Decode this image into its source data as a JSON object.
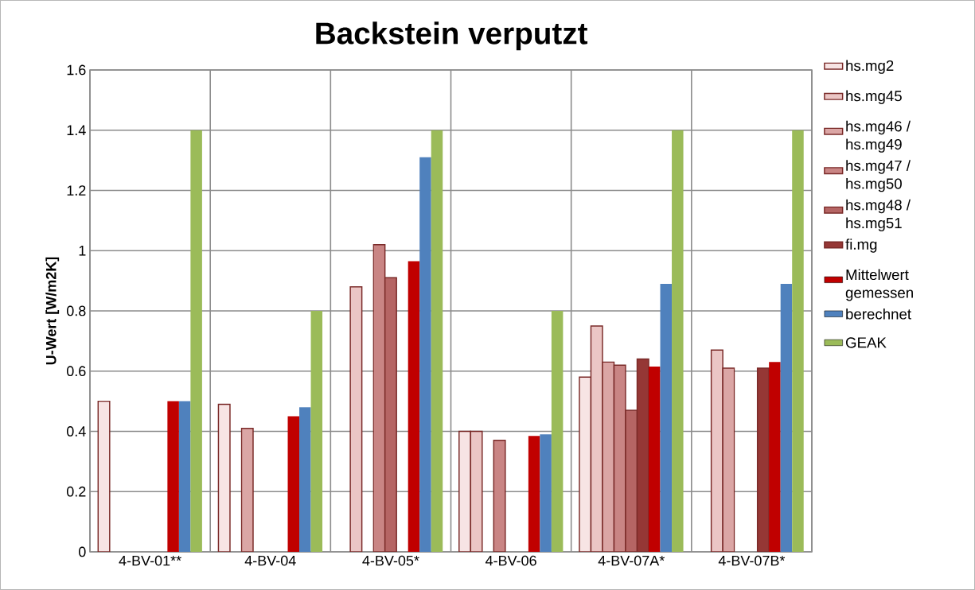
{
  "chart_data": {
    "type": "bar",
    "title": "Backstein verputzt",
    "ylabel": "U-Wert [W/m2K]",
    "categories": [
      "4-BV-01**",
      "4-BV-04",
      "4-BV-05*",
      "4-BV-06",
      "4-BV-07A*",
      "4-BV-07B*"
    ],
    "series": [
      {
        "name": "hs.mg2",
        "color": "#f7e4e4",
        "values": [
          0.5,
          0.49,
          null,
          0.4,
          0.58,
          null
        ]
      },
      {
        "name": "hs.mg45",
        "color": "#ebc6c5",
        "values": [
          null,
          null,
          0.88,
          0.4,
          0.75,
          0.67
        ]
      },
      {
        "name": "hs.mg46 / hs.mg49",
        "color": "#dba6a5",
        "values": [
          null,
          0.41,
          null,
          null,
          0.63,
          0.61
        ]
      },
      {
        "name": "hs.mg47 / hs.mg50",
        "color": "#c98584",
        "values": [
          null,
          null,
          1.02,
          0.37,
          0.62,
          null
        ]
      },
      {
        "name": "hs.mg48 / hs.mg51",
        "color": "#b56564",
        "values": [
          null,
          null,
          0.91,
          null,
          0.47,
          null
        ]
      },
      {
        "name": "fi.mg",
        "color": "#953735",
        "values": [
          null,
          null,
          null,
          null,
          0.64,
          0.61
        ]
      },
      {
        "name": "Mittelwert gemessen",
        "color": "#c00000",
        "values": [
          0.5,
          0.45,
          0.965,
          0.385,
          0.615,
          0.63
        ]
      },
      {
        "name": "berechnet",
        "color": "#4f81bd",
        "values": [
          0.5,
          0.48,
          1.31,
          0.39,
          0.89,
          0.89
        ]
      },
      {
        "name": "GEAK",
        "color": "#9bbb59",
        "values": [
          1.4,
          0.8,
          1.4,
          0.8,
          1.4,
          1.4
        ]
      }
    ],
    "ylim": [
      0,
      1.6
    ],
    "yticks": [
      0,
      0.2,
      0.4,
      0.6,
      0.8,
      1,
      1.2,
      1.4,
      1.6
    ],
    "grid": true,
    "legend": "right"
  }
}
